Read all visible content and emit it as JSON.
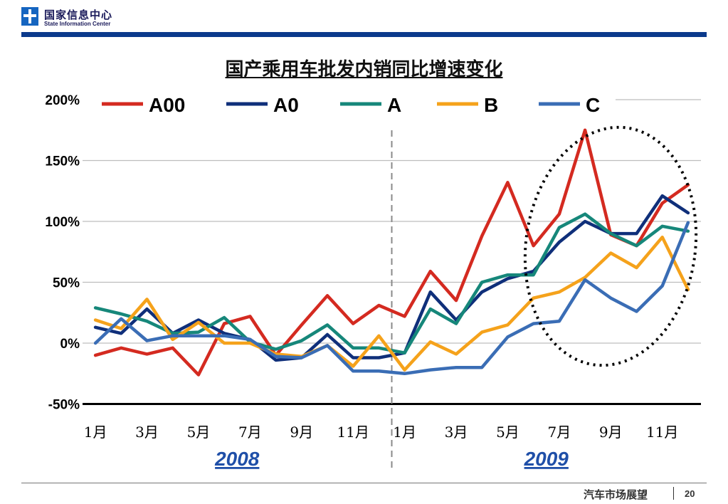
{
  "header": {
    "org_cn": "国家信息中心",
    "org_en": "State Information Center"
  },
  "footer": {
    "section": "汽车市场展望",
    "page": "20"
  },
  "colors": {
    "A00": "#d42a20",
    "A0": "#0f2f7a",
    "A": "#16877a",
    "B": "#f5a21b",
    "C": "#3a6db5",
    "brand_bar": "#0b3a8c",
    "year_label": "#1f4fa8"
  },
  "chart_data": {
    "type": "line",
    "title": "国产乘用车批发内销同比增速变化",
    "x": [
      "1月",
      "2月",
      "3月",
      "4月",
      "5月",
      "6月",
      "7月",
      "8月",
      "9月",
      "10月",
      "11月",
      "12月",
      "1月",
      "2月",
      "3月",
      "4月",
      "5月",
      "6月",
      "7月",
      "8月",
      "9月",
      "10月",
      "11月",
      "12月"
    ],
    "tick_labels": [
      "1月",
      "3月",
      "5月",
      "7月",
      "9月",
      "11月",
      "1月",
      "3月",
      "5月",
      "7月",
      "9月",
      "11月"
    ],
    "year_groups": [
      "2008",
      "2009"
    ],
    "ylim": [
      -50,
      200
    ],
    "yticks": [
      "-50%",
      "0%",
      "50%",
      "100%",
      "150%",
      "200%"
    ],
    "grid": true,
    "legend_position": "top",
    "series": [
      {
        "name": "A00",
        "values": [
          -10,
          -4,
          -9,
          -4,
          -26,
          16,
          22,
          -10,
          15,
          39,
          16,
          31,
          22,
          59,
          35,
          88,
          132,
          80,
          106,
          175,
          89,
          80,
          115,
          130
        ]
      },
      {
        "name": "A0",
        "values": [
          13,
          8,
          28,
          8,
          19,
          8,
          3,
          -14,
          -12,
          7,
          -12,
          -12,
          -8,
          42,
          19,
          42,
          53,
          59,
          83,
          100,
          90,
          90,
          121,
          107
        ]
      },
      {
        "name": "A",
        "values": [
          29,
          24,
          18,
          8,
          9,
          21,
          1,
          -5,
          2,
          15,
          -4,
          -4,
          -8,
          28,
          16,
          50,
          56,
          56,
          95,
          106,
          90,
          80,
          96,
          92
        ]
      },
      {
        "name": "B",
        "values": [
          19,
          12,
          36,
          3,
          17,
          0,
          0,
          -9,
          -11,
          -2,
          -19,
          6,
          -22,
          1,
          -9,
          9,
          15,
          37,
          42,
          54,
          74,
          62,
          87,
          44
        ]
      },
      {
        "name": "C",
        "values": [
          0,
          20,
          2,
          6,
          6,
          6,
          3,
          -11,
          -12,
          -2,
          -23,
          -23,
          -25,
          -22,
          -20,
          -20,
          5,
          16,
          18,
          52,
          37,
          26,
          47,
          99
        ]
      }
    ]
  }
}
